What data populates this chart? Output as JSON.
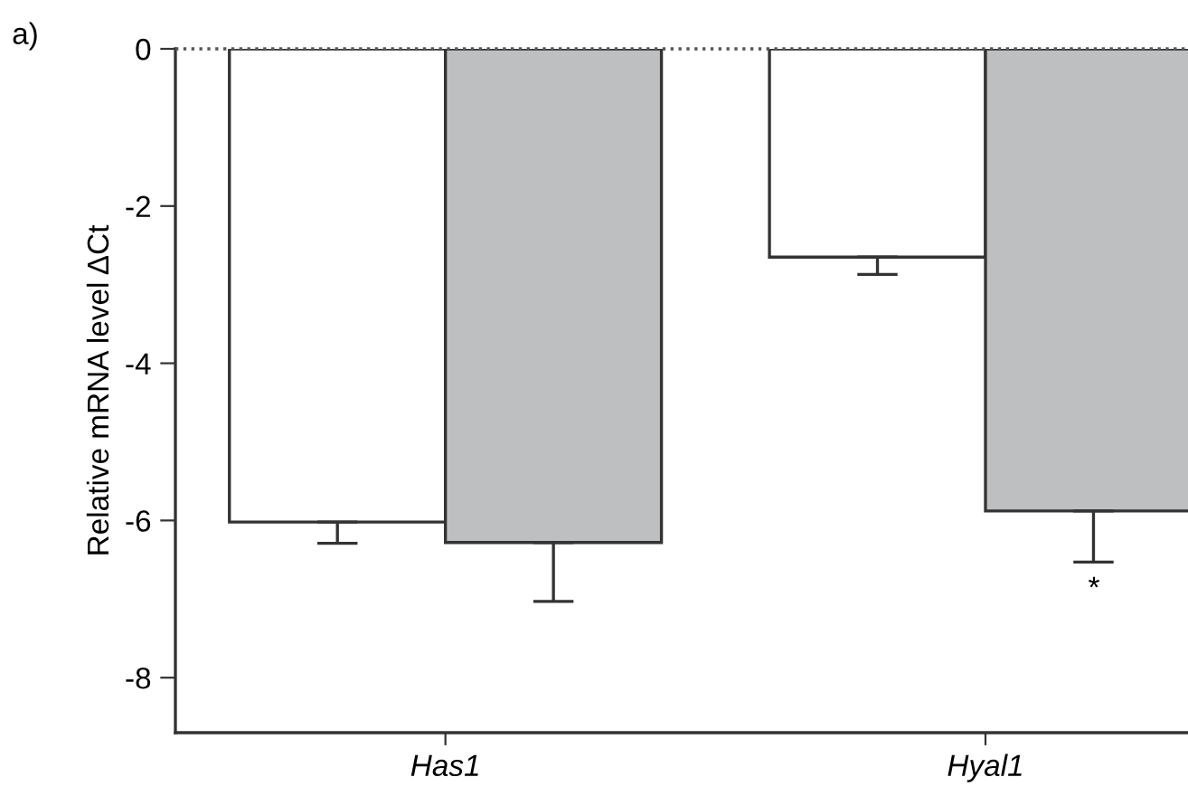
{
  "chart_data": {
    "type": "bar",
    "ylabel": "Relative mRNA level ΔCt",
    "categories": [
      "Has1",
      "Hyal1"
    ],
    "series": [
      {
        "color": "#ffffff",
        "values": [
          -6.02,
          -2.65
        ],
        "errors": [
          [
            -6.29,
            -6.02
          ],
          [
            -2.87,
            -2.65
          ]
        ]
      },
      {
        "color": "#bebfc1",
        "values": [
          -6.28,
          -5.88
        ],
        "errors": [
          [
            -7.03,
            -6.28
          ],
          [
            -6.53,
            -5.88
          ]
        ]
      }
    ],
    "ylim": [
      -8.7,
      0
    ],
    "yticks": [
      -8,
      -6,
      -4,
      -2,
      0
    ],
    "ref_lines": [
      {
        "axis": "y",
        "value": 0,
        "line_style": "dotted",
        "color": "#555555"
      }
    ],
    "annotations": [
      "a)",
      "*"
    ],
    "grid": false,
    "legend": false
  }
}
